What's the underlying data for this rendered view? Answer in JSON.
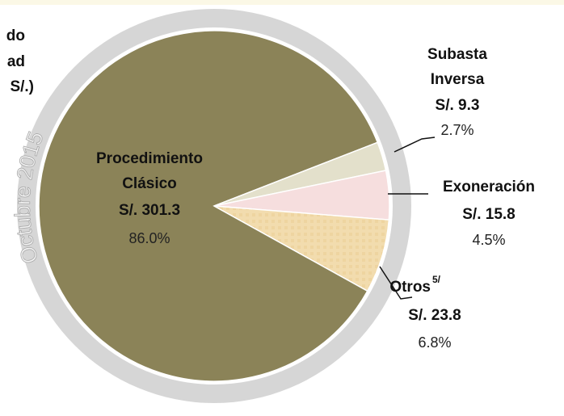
{
  "chart_data": {
    "type": "pie",
    "title_lines": [
      "do",
      "ad",
      "S/.)"
    ],
    "ring_label": "Octubre 2015",
    "categories": [
      "Procedimiento Clásico",
      "Subasta Inversa",
      "Exoneración",
      "Otros"
    ],
    "label_notes": [
      null,
      null,
      null,
      "5/"
    ],
    "values": [
      301.3,
      9.3,
      15.8,
      23.8
    ],
    "value_labels": [
      "S/. 301.3",
      "S/. 9.3",
      "S/. 15.8",
      "S/. 23.8"
    ],
    "percent_labels": [
      "86.0%",
      "2.7%",
      "4.5%",
      "6.8%"
    ],
    "colors": [
      "#8b8358",
      "#e3e0cb",
      "#f6dede",
      "#f2dcae"
    ]
  }
}
